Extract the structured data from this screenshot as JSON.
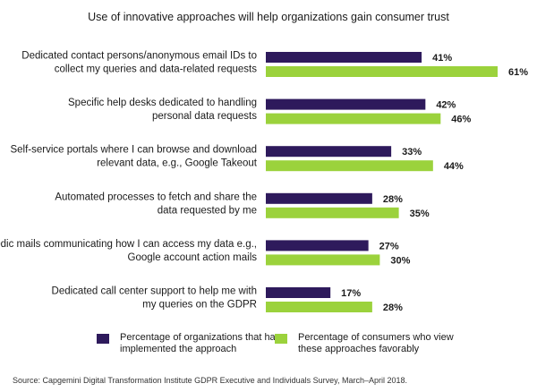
{
  "chart_data": {
    "type": "bar",
    "orientation": "horizontal",
    "title": "Use of innovative approaches will help organizations gain consumer trust",
    "categories": [
      [
        "Dedicated contact persons/anonymous email IDs to",
        "collect my queries and data-related requests"
      ],
      [
        "Specific help desks dedicated to handling",
        "personal data requests"
      ],
      [
        "Self-service portals where I can browse and download",
        "relevant data, e.g., Google Takeout"
      ],
      [
        "Automated processes to fetch and share the",
        "data requested by me"
      ],
      [
        "Periodic mails communicating how I can access my data e.g.,",
        "Google account action mails"
      ],
      [
        "Dedicated call center support to help me with",
        "my queries on the GDPR"
      ]
    ],
    "series": [
      {
        "name": "Percentage of organizations that have\nimplemented the approach",
        "color": "#2e1a5c",
        "values": [
          41,
          42,
          33,
          28,
          27,
          17
        ]
      },
      {
        "name": "Percentage of consumers who view\nthese approaches favorably",
        "color": "#9bd23c",
        "values": [
          61,
          46,
          44,
          35,
          30,
          28
        ]
      }
    ],
    "value_suffix": "%",
    "xlim": [
      0,
      61
    ],
    "grid": false,
    "legend_position": "bottom"
  },
  "source": "Source: Capgemini Digital Transformation Institute GDPR Executive and Individuals Survey, March–April 2018."
}
